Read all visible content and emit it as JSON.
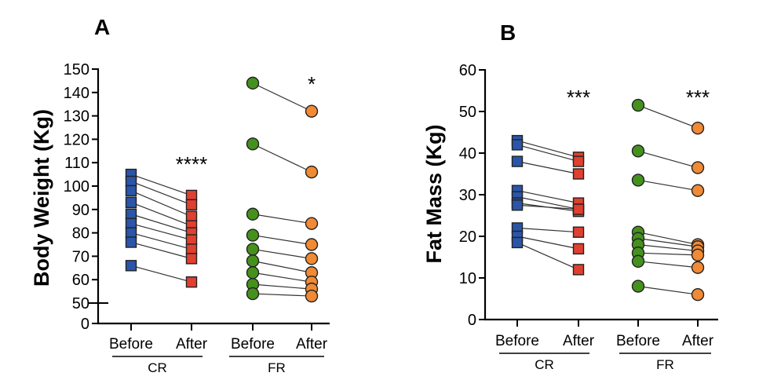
{
  "colors": {
    "cr_before": "#2b55a8",
    "cr_after": "#e0402f",
    "fr_before": "#45911e",
    "fr_after": "#f08a35"
  },
  "chart_data": [
    {
      "type": "scatter",
      "panel_label": "A",
      "ylabel": "Body Weight (Kg)",
      "ylim": [
        0,
        150
      ],
      "axis_break": [
        5,
        50
      ],
      "yticks": [
        "0",
        "50",
        "60",
        "70",
        "80",
        "90",
        "100",
        "110",
        "120",
        "130",
        "140",
        "150"
      ],
      "categories": [
        "Before",
        "After",
        "Before",
        "After"
      ],
      "groups": [
        {
          "name": "CR",
          "significance": "****",
          "before": [
            105,
            102,
            98,
            93,
            88,
            84,
            80,
            76,
            66
          ],
          "after": [
            96,
            92,
            87,
            83,
            80,
            77,
            73,
            69,
            59
          ],
          "before_marker": "square",
          "after_marker": "square"
        },
        {
          "name": "FR",
          "significance": "*",
          "before": [
            144,
            118,
            88,
            79,
            73,
            68,
            63,
            58,
            54
          ],
          "after": [
            132,
            106,
            84,
            75,
            69,
            63,
            59,
            56,
            53
          ],
          "before_marker": "circle",
          "after_marker": "circle"
        }
      ]
    },
    {
      "type": "scatter",
      "panel_label": "B",
      "ylabel": "Fat Mass (Kg)",
      "ylim": [
        0,
        60
      ],
      "yticks": [
        "0",
        "10",
        "20",
        "30",
        "40",
        "50",
        "60"
      ],
      "categories": [
        "Before",
        "After",
        "Before",
        "After"
      ],
      "groups": [
        {
          "name": "CR",
          "significance": "***",
          "before": [
            43,
            42,
            38,
            31,
            29.5,
            28,
            27.5,
            22,
            20,
            18.5
          ],
          "after": [
            39,
            38,
            35,
            28,
            26.5,
            26,
            26.5,
            21,
            17,
            12
          ],
          "before_marker": "square",
          "after_marker": "square"
        },
        {
          "name": "FR",
          "significance": "***",
          "before": [
            51.5,
            40.5,
            33.5,
            21,
            19.5,
            18,
            16,
            14,
            8
          ],
          "after": [
            46,
            36.5,
            31,
            18,
            17.5,
            16.5,
            15.5,
            12.5,
            6
          ],
          "before_marker": "circle",
          "after_marker": "circle"
        }
      ]
    }
  ]
}
